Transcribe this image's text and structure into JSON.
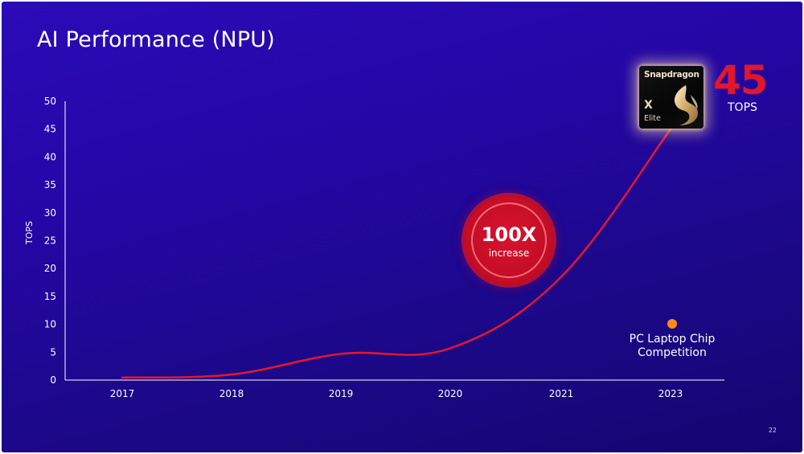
{
  "slide": {
    "title": "AI Performance (NPU)",
    "page_number": "22"
  },
  "chart_data": {
    "type": "line",
    "title": "AI Performance (NPU)",
    "xlabel": "",
    "ylabel": "TOPS",
    "categories": [
      "2017",
      "2018",
      "2019",
      "2020",
      "2021",
      "2023"
    ],
    "ylim": [
      0,
      50
    ],
    "yticks": [
      0,
      5,
      10,
      15,
      20,
      25,
      30,
      35,
      40,
      45,
      50
    ],
    "grid": false,
    "series": [
      {
        "values": [
          0.45,
          1.0,
          4.7,
          5.7,
          18.5,
          45
        ],
        "color": "#e0172d"
      }
    ],
    "annotations": {
      "endpoint": {
        "chip_brand": "Snapdragon",
        "chip_model": "X",
        "chip_tier": "Elite",
        "value": "45",
        "unit": "TOPS"
      },
      "badge": {
        "value": "100X",
        "caption": "increase",
        "color": "#d81330"
      },
      "competition": {
        "label_line1": "PC Laptop Chip",
        "label_line2": "Competition",
        "value": 10.5,
        "x": "2023",
        "color": "#ff8a1c"
      }
    },
    "axis_color": "#ffffff"
  }
}
